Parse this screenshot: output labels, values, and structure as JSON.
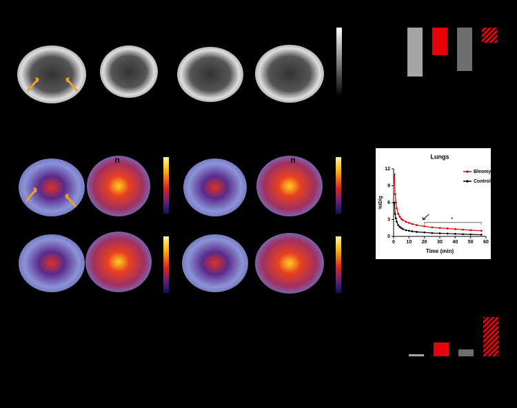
{
  "figure": {
    "image_labels": [
      "n",
      "n"
    ]
  },
  "chart_data": [
    {
      "type": "line",
      "title": "Lungs",
      "x_label": "Time (min)",
      "y_label": "%ID/g",
      "x": [
        0.5,
        1,
        1.5,
        2,
        3,
        4,
        5,
        6,
        8,
        10,
        12,
        15,
        20,
        25,
        30,
        35,
        40,
        45,
        50,
        57
      ],
      "series": [
        {
          "name": "Bleomycin",
          "color": "#e00000",
          "values": [
            11,
            7.5,
            6,
            5,
            4,
            3.5,
            3.1,
            2.9,
            2.6,
            2.4,
            2.2,
            2.0,
            1.8,
            1.6,
            1.5,
            1.4,
            1.3,
            1.2,
            1.1,
            1.0
          ]
        },
        {
          "name": "Control",
          "color": "#000000",
          "values": [
            6,
            4,
            3.2,
            2.6,
            2,
            1.7,
            1.5,
            1.3,
            1.1,
            1.0,
            0.9,
            0.8,
            0.7,
            0.6,
            0.55,
            0.5,
            0.45,
            0.4,
            0.35,
            0.3
          ]
        }
      ],
      "xlim": [
        0,
        60
      ],
      "xticks": [
        0,
        10,
        20,
        30,
        40,
        50,
        60
      ],
      "ylim": [
        0,
        12
      ],
      "yticks": [
        0,
        3,
        6,
        9,
        12
      ],
      "annotation": "*",
      "legend": "upper-right"
    },
    {
      "type": "bar",
      "direction": "down",
      "values": [
        71,
        40,
        63,
        22
      ],
      "colors": [
        "#a6a6a6",
        "#e8000b",
        "#6e6e6e",
        "#e8000b"
      ],
      "hatched": [
        false,
        false,
        false,
        true
      ]
    },
    {
      "type": "bar",
      "direction": "up",
      "values": [
        3,
        20,
        10,
        57
      ],
      "colors": [
        "#a6a6a6",
        "#e8000b",
        "#6e6e6e",
        "#e8000b"
      ],
      "hatched": [
        false,
        false,
        false,
        true
      ]
    }
  ]
}
